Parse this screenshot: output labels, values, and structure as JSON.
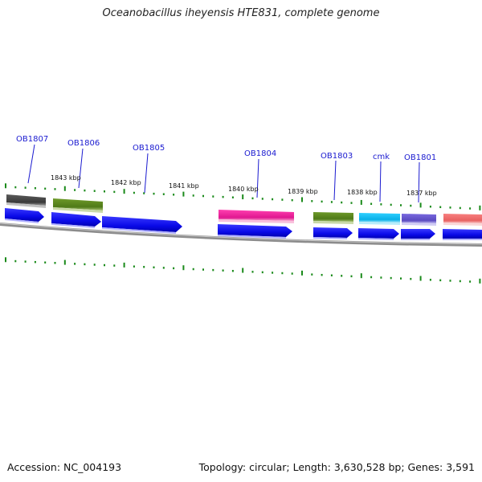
{
  "title": "Oceanobacillus iheyensis HTE831, complete genome",
  "footer": {
    "accession": "Accession: NC_004193",
    "summary": "Topology: circular; Length: 3,630,528 bp; Genes: 3,591"
  },
  "colors": {
    "gene_label": "#1a1ad0",
    "cds_arrow": "#1010ee",
    "backbone": "#808080",
    "gc_tick": "#1a8a1a"
  },
  "scale_labels": [
    {
      "id": "kbp-1843",
      "text": "1843 kbp"
    },
    {
      "id": "kbp-1842",
      "text": "1842 kbp"
    },
    {
      "id": "kbp-1841",
      "text": "1841 kbp"
    },
    {
      "id": "kbp-1840",
      "text": "1840 kbp"
    },
    {
      "id": "kbp-1839",
      "text": "1839 kbp"
    },
    {
      "id": "kbp-1838",
      "text": "1838 kbp"
    },
    {
      "id": "kbp-1837",
      "text": "1837 kbp"
    }
  ],
  "genes": [
    {
      "id": "ob1807",
      "label": "OB1807",
      "color": "#4a4a4a"
    },
    {
      "id": "ob1806",
      "label": "OB1806",
      "color": "#5c8a1e"
    },
    {
      "id": "ob1805",
      "label": "OB1805",
      "color": null
    },
    {
      "id": "ob1804",
      "label": "OB1804",
      "color": "#ee2299"
    },
    {
      "id": "ob1803",
      "label": "OB1803",
      "color": "#5c8a1e"
    },
    {
      "id": "cmk",
      "label": "cmk",
      "color": "#10b8e8"
    },
    {
      "id": "ob1801",
      "label": "OB1801",
      "color": "#6a5acd"
    },
    {
      "id": "unlabeled-edge",
      "label": "",
      "color": "#f07070"
    }
  ]
}
